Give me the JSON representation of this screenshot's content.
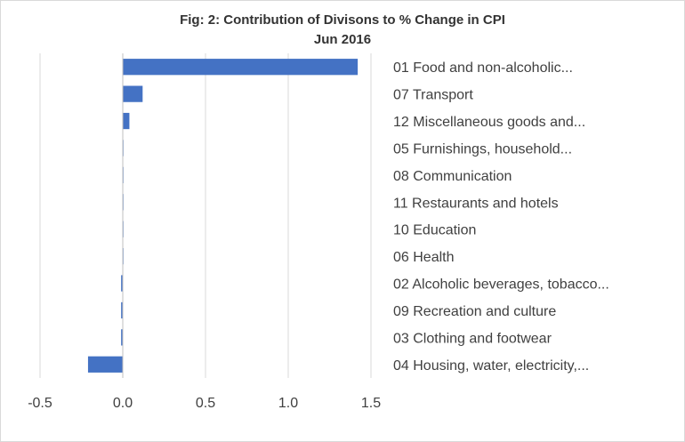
{
  "chart_data": {
    "type": "bar",
    "orientation": "horizontal",
    "title": "Fig: 2: Contribution of Divisons to % Change in CPI",
    "subtitle": "Jun 2016",
    "categories": [
      "01 Food and non-alcoholic...",
      "07 Transport",
      "12 Miscellaneous goods and...",
      "05 Furnishings, household...",
      "08 Communication",
      "11 Restaurants and hotels",
      "10 Education",
      "06 Health",
      "02 Alcoholic beverages, tobacco...",
      "09 Recreation and culture",
      "03 Clothing and footwear",
      "04 Housing, water, electricity,..."
    ],
    "values": [
      1.42,
      0.12,
      0.04,
      0.0,
      0.0,
      0.0,
      0.0,
      0.0,
      -0.01,
      -0.01,
      -0.01,
      -0.21
    ],
    "xlim": [
      -0.5,
      1.5
    ],
    "xticks": [
      -0.5,
      0.0,
      0.5,
      1.0,
      1.5
    ],
    "xtick_labels": [
      "-0.5",
      "0.0",
      "0.5",
      "1.0",
      "1.5"
    ],
    "grid": true,
    "legend": "none",
    "bar_color": "#4472c4",
    "grid_color": "#d9d9d9"
  }
}
